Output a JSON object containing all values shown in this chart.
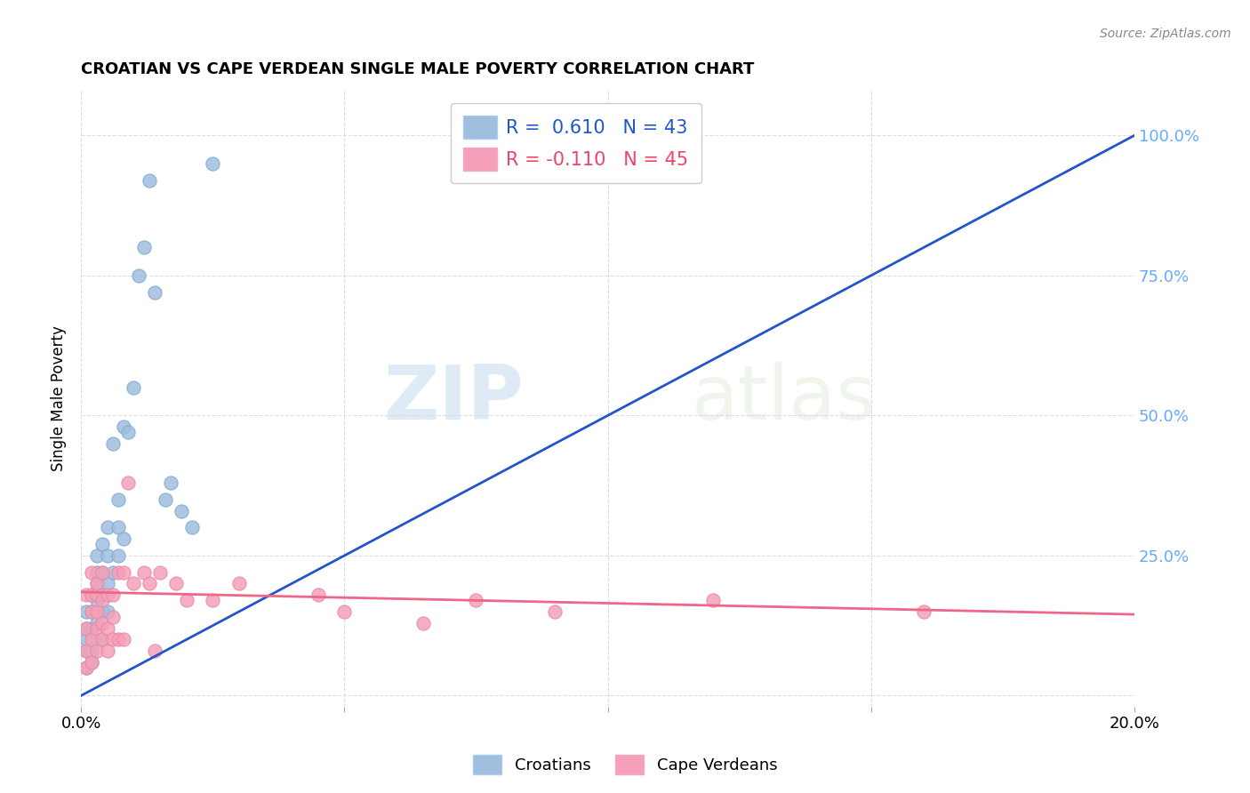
{
  "title": "CROATIAN VS CAPE VERDEAN SINGLE MALE POVERTY CORRELATION CHART",
  "source": "Source: ZipAtlas.com",
  "ylabel": "Single Male Poverty",
  "watermark_zip": "ZIP",
  "watermark_atlas": "atlas",
  "croatian_color": "#a0bede",
  "cape_verdean_color": "#f5a0b8",
  "trendline_croatian_color": "#2255cc",
  "trendline_cape_verdean_color": "#ee6688",
  "legend_label_cr": "R =  0.610   N = 43",
  "legend_label_cv": "R = -0.110   N = 45",
  "legend_label_cr_color": "#2255cc",
  "legend_label_cv_color": "#ee4466",
  "bottom_label_cr": "Croatians",
  "bottom_label_cv": "Cape Verdeans",
  "right_tick_color": "#66aaff",
  "croatian_x": [
    0.001,
    0.001,
    0.001,
    0.001,
    0.001,
    0.002,
    0.002,
    0.002,
    0.002,
    0.002,
    0.003,
    0.003,
    0.003,
    0.003,
    0.003,
    0.003,
    0.004,
    0.004,
    0.004,
    0.004,
    0.004,
    0.005,
    0.005,
    0.005,
    0.005,
    0.006,
    0.006,
    0.007,
    0.007,
    0.007,
    0.008,
    0.008,
    0.009,
    0.01,
    0.011,
    0.012,
    0.013,
    0.014,
    0.016,
    0.017,
    0.019,
    0.021,
    0.025
  ],
  "croatian_y": [
    0.05,
    0.08,
    0.1,
    0.12,
    0.15,
    0.06,
    0.08,
    0.12,
    0.15,
    0.18,
    0.1,
    0.13,
    0.17,
    0.2,
    0.22,
    0.25,
    0.1,
    0.15,
    0.18,
    0.22,
    0.27,
    0.15,
    0.2,
    0.25,
    0.3,
    0.22,
    0.45,
    0.25,
    0.3,
    0.35,
    0.28,
    0.48,
    0.47,
    0.55,
    0.75,
    0.8,
    0.92,
    0.72,
    0.35,
    0.38,
    0.33,
    0.3,
    0.95
  ],
  "cape_verdean_x": [
    0.001,
    0.001,
    0.001,
    0.001,
    0.002,
    0.002,
    0.002,
    0.002,
    0.002,
    0.003,
    0.003,
    0.003,
    0.003,
    0.003,
    0.004,
    0.004,
    0.004,
    0.004,
    0.005,
    0.005,
    0.005,
    0.006,
    0.006,
    0.006,
    0.007,
    0.007,
    0.008,
    0.008,
    0.009,
    0.01,
    0.012,
    0.013,
    0.014,
    0.015,
    0.018,
    0.02,
    0.025,
    0.03,
    0.045,
    0.05,
    0.065,
    0.075,
    0.09,
    0.12,
    0.16
  ],
  "cape_verdean_y": [
    0.05,
    0.08,
    0.12,
    0.18,
    0.06,
    0.1,
    0.15,
    0.18,
    0.22,
    0.08,
    0.12,
    0.15,
    0.18,
    0.2,
    0.1,
    0.13,
    0.17,
    0.22,
    0.08,
    0.12,
    0.18,
    0.1,
    0.14,
    0.18,
    0.1,
    0.22,
    0.1,
    0.22,
    0.38,
    0.2,
    0.22,
    0.2,
    0.08,
    0.22,
    0.2,
    0.17,
    0.17,
    0.2,
    0.18,
    0.15,
    0.13,
    0.17,
    0.15,
    0.17,
    0.15
  ],
  "cr_trend_x": [
    0.0,
    0.2
  ],
  "cr_trend_y": [
    0.0,
    1.0
  ],
  "cv_trend_x": [
    0.0,
    0.2
  ],
  "cv_trend_y": [
    0.185,
    0.145
  ],
  "xlim": [
    0.0,
    0.2
  ],
  "ylim": [
    -0.02,
    1.08
  ],
  "xticks": [
    0.0,
    0.05,
    0.1,
    0.15,
    0.2
  ],
  "yticks": [
    0.0,
    0.25,
    0.5,
    0.75,
    1.0
  ],
  "background_color": "#ffffff",
  "grid_color": "#dddddd"
}
